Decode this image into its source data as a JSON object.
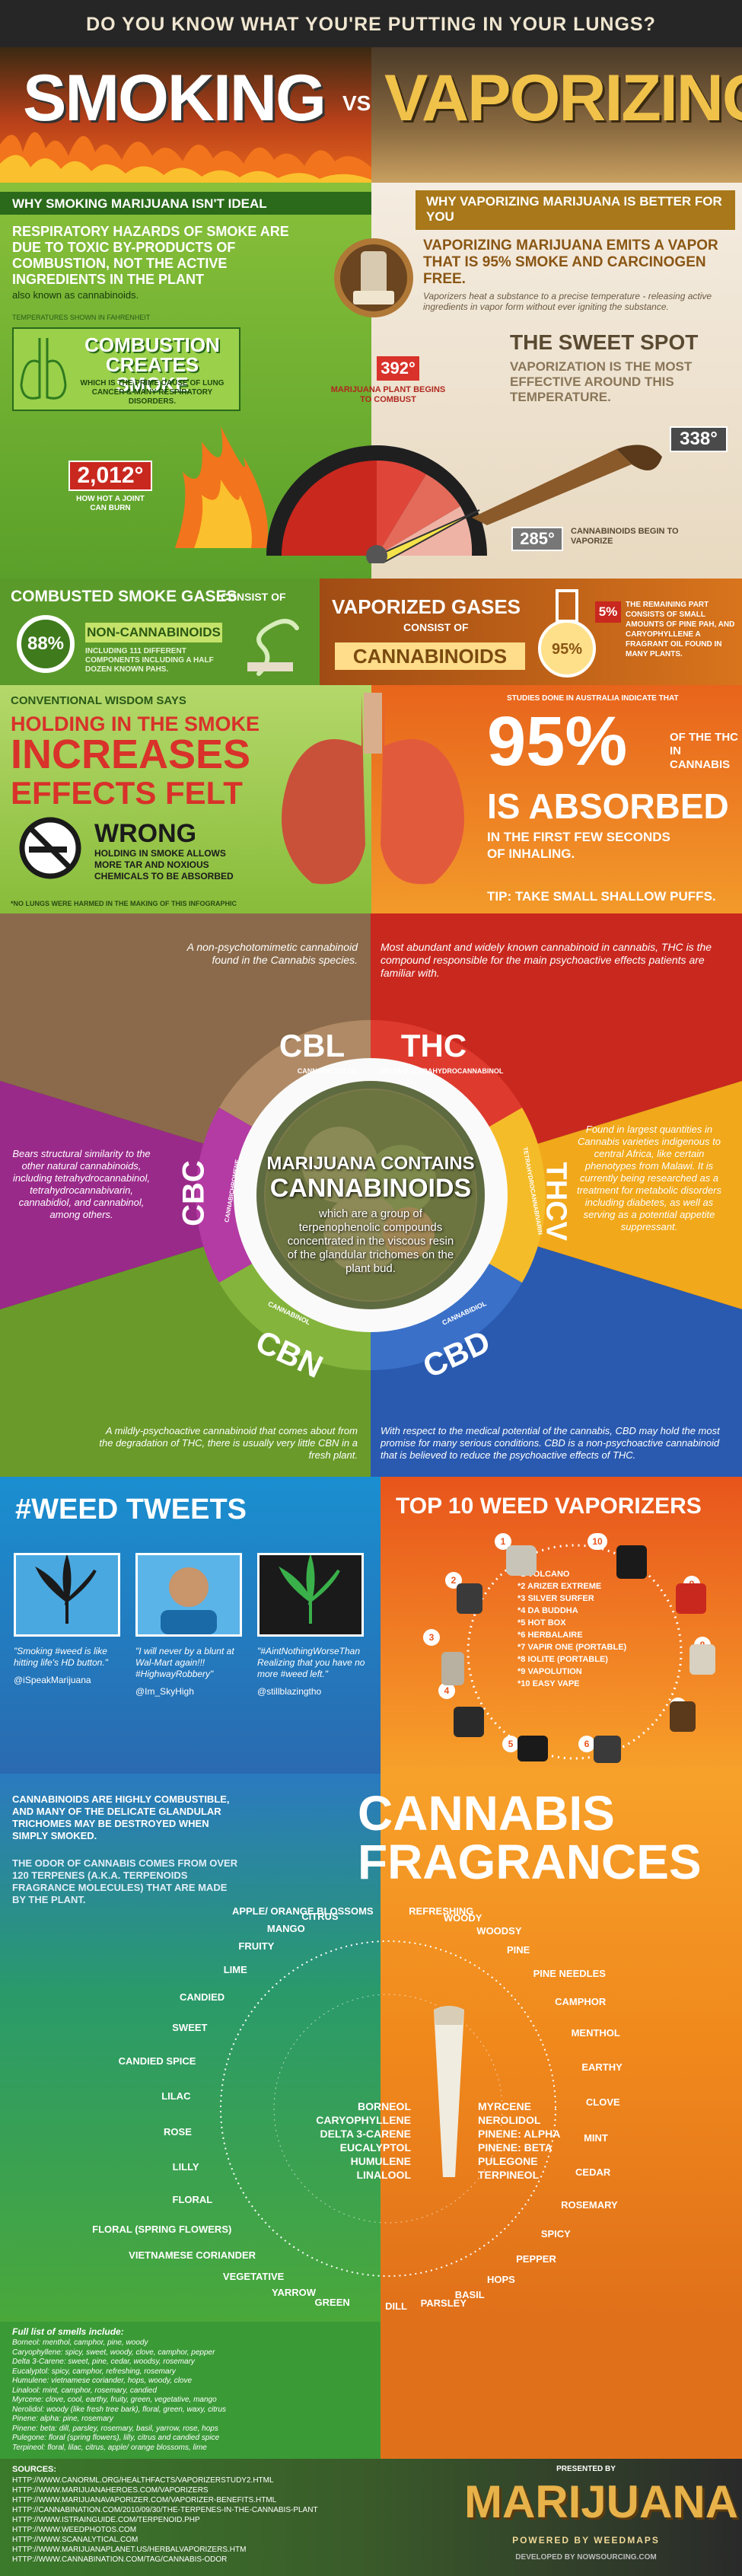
{
  "header": {
    "question": "DO YOU KNOW WHAT YOU'RE PUTTING IN YOUR LUNGS?",
    "smoking": "SMOKING",
    "vs": "VS",
    "vaporizing": "VAPORIZING"
  },
  "smoking_side": {
    "banner": "WHY SMOKING MARIJUANA ISN'T IDEAL",
    "hazard": "RESPIRATORY HAZARDS OF SMOKE ARE DUE TO TOXIC BY-PRODUCTS OF COMBUSTION, NOT THE ACTIVE INGREDIENTS IN THE PLANT",
    "hazard_sub": "also known as cannabinoids.",
    "temp_note": "TEMPERATURES SHOWN IN FAHRENHEIT",
    "combustion_title": "COMBUSTION CREATES SMOKE",
    "combustion_sub": "WHICH IS THE PRIME CAUSE OF LUNG CANCER & MANY RESPIRATORY DISORDERS.",
    "joint_temp": "2,012°",
    "joint_label": "HOW HOT A JOINT CAN BURN",
    "combust_temp": "392°",
    "combust_label": "MARIJUANA PLANT BEGINS TO COMBUST"
  },
  "vapor_side": {
    "banner": "WHY VAPORIZING MARIJUANA IS BETTER FOR YOU",
    "emits": "VAPORIZING MARIJUANA EMITS A VAPOR THAT IS 95% SMOKE AND CARCINOGEN FREE.",
    "emits_sub": "Vaporizers heat a substance to a precise temperature - releasing active ingredients in vapor form without ever igniting the substance.",
    "sweet_title": "THE SWEET SPOT",
    "sweet_sub": "VAPORIZATION IS THE MOST EFFECTIVE AROUND THIS TEMPERATURE.",
    "sweet_temp": "338°",
    "vapor_temp": "285°",
    "vapor_label": "CANNABINOIDS BEGIN TO VAPORIZE"
  },
  "gases": {
    "smoke_title": "COMBUSTED SMOKE GASES",
    "smoke_consist": "CONSIST OF",
    "smoke_pct": "88%",
    "smoke_what": "NON-CANNABINOIDS",
    "smoke_detail": "INCLUDING 111 DIFFERENT COMPONENTS INCLUDING A HALF DOZEN KNOWN PAHS.",
    "vapor_title": "VAPORIZED GASES",
    "vapor_consist": "CONSIST OF",
    "vapor_what": "CANNABINOIDS",
    "vapor_pct": "95%",
    "vapor_rest_pct": "5%",
    "vapor_rest": "THE REMAINING PART CONSISTS OF SMALL AMOUNTS OF PINE PAH, AND CARYOPHYLLENE A FRAGRANT OIL FOUND IN MANY PLANTS."
  },
  "wisdom": {
    "label": "CONVENTIONAL WISDOM SAYS",
    "line1": "HOLDING IN THE SMOKE",
    "line2": "INCREASES",
    "line3": "EFFECTS FELT",
    "wrong": "WRONG",
    "wrong_sub": "HOLDING IN SMOKE ALLOWS MORE TAR AND NOXIOUS CHEMICALS TO BE ABSORBED",
    "note": "*NO LUNGS WERE HARMED IN THE MAKING OF THIS INFOGRAPHIC",
    "study": "STUDIES DONE IN AUSTRALIA INDICATE THAT",
    "pct": "95%",
    "pct_sub": "OF THE THC IN CANNABIS",
    "absorbed": "IS ABSORBED",
    "absorbed_sub1": "IN THE FIRST FEW SECONDS",
    "absorbed_sub2": "OF INHALING.",
    "tip": "TIP: TAKE SMALL SHALLOW PUFFS."
  },
  "cannabinoids": {
    "center_title1": "MARIJUANA CONTAINS",
    "center_title2": "CANNABINOIDS",
    "center_sub": "which are a group of terpenophenolic compounds concentrated in the viscous resin of the glandular trichomes on the plant bud.",
    "cbl": {
      "name": "CBL",
      "full": "CANNABICYCLOL",
      "desc": "A non-psychotomimetic cannabinoid found in the Cannabis species."
    },
    "thc": {
      "name": "THC",
      "full": "DELTA-9-TETRAHYDROCANNABINOL",
      "desc": "Most abundant and widely known cannabinoid in cannabis, THC is the compound responsible for the main psychoactive effects patients are familiar with."
    },
    "thcv": {
      "name": "THCV",
      "full": "TETRAHYDROCANNABIVARIN",
      "desc": "Found in largest quantities in Cannabis varieties indigenous to central Africa, like certain phenotypes from Malawi. It is currently being researched as a treatment for metabolic disorders including diabetes, as well as serving as a potential appetite suppressant."
    },
    "cbd": {
      "name": "CBD",
      "full": "CANNABIDIOL",
      "desc": "With respect to the medical potential of the cannabis, CBD may hold the most promise for many serious conditions. CBD is a non-psychoactive cannabinoid that is believed to reduce the psychoactive effects of THC."
    },
    "cbn": {
      "name": "CBN",
      "full": "CANNABINOL",
      "desc": "A mildly-psychoactive cannabinoid that comes about from the degradation of THC, there is usually very little CBN in a fresh plant."
    },
    "cbc": {
      "name": "CBC",
      "full": "CANNABICHROMENE",
      "desc": "Bears structural similarity to the other natural cannabinoids, including tetrahydrocannabinol, tetrahydrocannabivarin, cannabidiol, and cannabinol, among others."
    }
  },
  "tweets": {
    "title": "#WEED TWEETS",
    "items": [
      {
        "quote": "\"Smoking #weed is like hitting life's HD button.\"",
        "handle": "@iSpeakMarijuana"
      },
      {
        "quote": "\"I will never by a blunt at Wal-Mart again!!! #HighwayRobbery\"",
        "handle": "@Im_SkyHigh"
      },
      {
        "quote": "\"#AintNothingWorseThan Realizing that you have no more #weed left.\"",
        "handle": "@stillblazingtho"
      }
    ]
  },
  "vaporizers": {
    "title": "TOP 10 WEED VAPORIZERS",
    "items": [
      "*1 VOLCANO",
      "*2 ARIZER EXTREME",
      "*3 SILVER SURFER",
      "*4 DA BUDDHA",
      "*5 HOT BOX",
      "*6 HERBALAIRE",
      "*7 VAPIR ONE (PORTABLE)",
      "*8 IOLITE (PORTABLE)",
      "*9 VAPOLUTION",
      "*10 EASY VAPE"
    ],
    "badges": [
      "1",
      "2",
      "3",
      "4",
      "5",
      "6",
      "7",
      "8",
      "9",
      "10"
    ]
  },
  "fragrances": {
    "intro": "CANNABINOIDS ARE HIGHLY COMBUSTIBLE, AND MANY OF THE DELICATE GLANDULAR TRICHOMES MAY BE DESTROYED WHEN SIMPLY SMOKED.",
    "odor": "THE ODOR OF CANNABIS COMES FROM OVER 120 TERPENES (A.K.A. TERPENOIDS FRAGRANCE MOLECULES) THAT ARE MADE BY THE PLANT.",
    "title1": "CANNABIS",
    "title2": "FRAGRANCES",
    "ring": [
      "REFRESHING",
      "WOODY",
      "WOODSY",
      "PINE",
      "PINE NEEDLES",
      "CAMPHOR",
      "MENTHOL",
      "EARTHY",
      "CLOVE",
      "MINT",
      "CEDAR",
      "ROSEMARY",
      "SPICY",
      "PEPPER",
      "HOPS",
      "BASIL",
      "PARSLEY",
      "DILL",
      "GREEN",
      "YARROW",
      "VEGETATIVE",
      "VIETNAMESE CORIANDER",
      "FLORAL (SPRING FLOWERS)",
      "FLORAL",
      "LILLY",
      "ROSE",
      "LILAC",
      "CANDIED SPICE",
      "SWEET",
      "CANDIED",
      "LIME",
      "FRUITY",
      "MANGO",
      "CITRUS",
      "APPLE/ ORANGE BLOSSOMS"
    ],
    "inner_left": [
      "BORNEOL",
      "CARYOPHYLLENE",
      "DELTA 3-CARENE",
      "EUCALYPTOL",
      "HUMULENE",
      "LINALOOL"
    ],
    "inner_right": [
      "MYRCENE",
      "NEROLIDOL",
      "PINENE: ALPHA",
      "PINENE: BETA",
      "PULEGONE",
      "TERPINEOL"
    ],
    "smells_title": "Full list of smells include:",
    "smells": [
      "Borneol: menthol, camphor, pine, woody",
      "Caryophyllene: spicy, sweet, woody, clove, camphor, pepper",
      "Delta 3-Carene: sweet, pine, cedar, woodsy, rosemary",
      "Eucalyptol: spicy, camphor, refreshing, rosemary",
      "Humulene: vietnamese coriander, hops, woody, clove",
      "Linalool: mint, camphor, rosemary, candied",
      "Myrcene: clove, cool, earthy, fruity, green, vegetative, mango",
      "Nerolidol: woody (like fresh tree bark), floral, green, waxy, citrus",
      "Pinene: alpha: pine, rosemary",
      "Pinene: beta: dill, parsley, rosemary, basil, yarrow, rose, hops",
      "Pulegone: floral (spring flowers), lilly, citrus and candied spice",
      "Terpineol: floral, lilac, citrus, apple/ orange blossoms, lime"
    ]
  },
  "footer": {
    "sources_title": "SOURCES:",
    "sources": [
      "HTTP://WWW.CANORML.ORG/HEALTHFACTS/VAPORIZERSTUDY2.HTML",
      "HTTP://WWW.MARIJUANAHEROES.COM/VAPORIZERS",
      "HTTP://WWW.MARIJUANAVAPORIZER.COM/VAPORIZER-BENEFITS.HTML",
      "HTTP://CANNABINATION.COM/2010/09/30/THE-TERPENES-IN-THE-CANNABIS-PLANT",
      "HTTP://WWW.ISTRAINGUIDE.COM/TERPENOID.PHP",
      "HTTP://WWW.WEEDPHOTOS.COM",
      "HTTP://WWW.SCANALYTICAL.COM",
      "HTTP://WWW.MARIJUANAPLANET.US/HERBALVAPORIZERS.HTM",
      "HTTP://WWW.CANNABINATION.COM/TAG/CANNABIS-ODOR"
    ],
    "presented_by": "PRESENTED BY",
    "brand": "MARIJUANA",
    "powered": "POWERED BY WEEDMAPS",
    "developed": "DEVELOPED BY NOWSOURCING.COM"
  },
  "colors": {
    "smoke_green": "#7fbe3a",
    "vapor_orange": "#f39a1e",
    "fire_red": "#d8322a",
    "dark_bg": "#2a2520"
  }
}
